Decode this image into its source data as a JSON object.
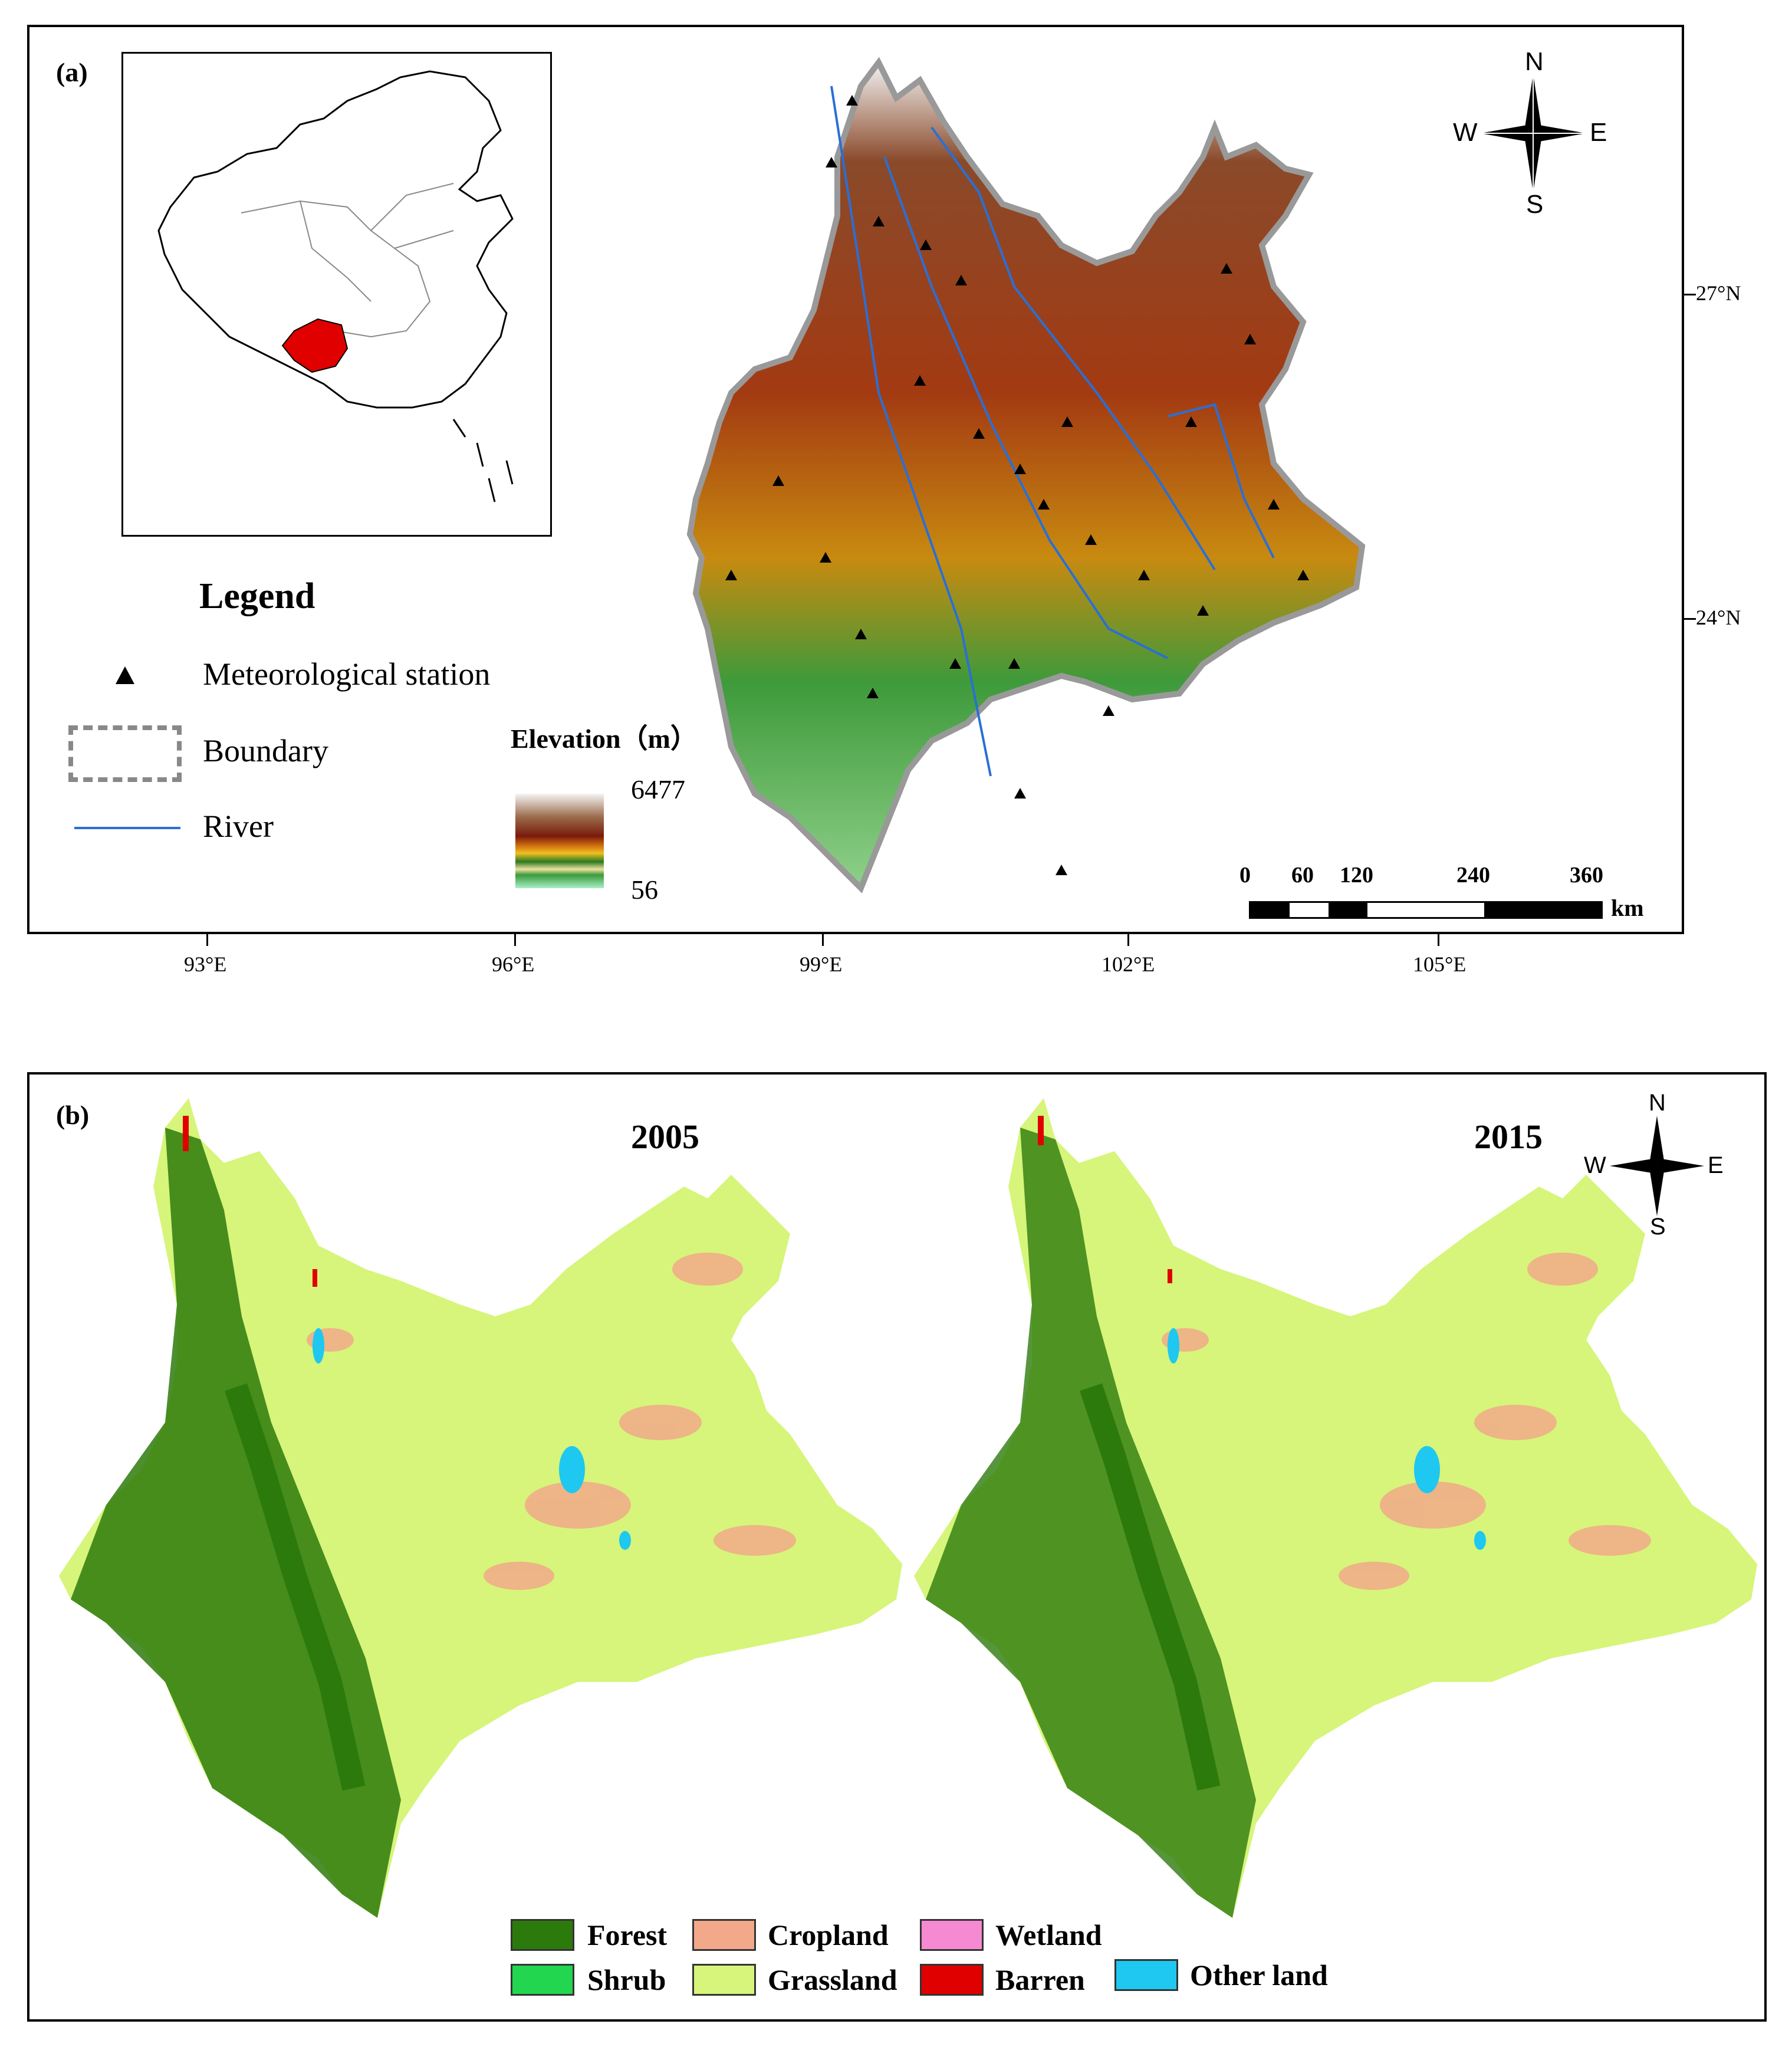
{
  "panel_a": {
    "label": "(a)",
    "legend": {
      "title": "Legend",
      "station": "Meteorological station",
      "boundary": "Boundary",
      "river": "River",
      "elevation_title": "Elevation（m）",
      "elevation_max": "6477",
      "elevation_min": "56"
    },
    "compass": {
      "n": "N",
      "s": "S",
      "w": "W",
      "e": "E"
    },
    "lat_ticks": [
      "27°N",
      "24°N"
    ],
    "lon_ticks": [
      "93°E",
      "96°E",
      "99°E",
      "102°E",
      "105°E"
    ],
    "scale": {
      "ticks": [
        "0",
        "60",
        "120",
        "240",
        "360"
      ],
      "unit": "km"
    },
    "colors": {
      "inset_region": "#e00000",
      "river": "#2a6fd6",
      "boundary": "#999999"
    }
  },
  "panel_b": {
    "label": "(b)",
    "years": [
      "2005",
      "2015"
    ],
    "compass": {
      "n": "N",
      "s": "S",
      "w": "W",
      "e": "E"
    },
    "legend": [
      {
        "name": "Forest",
        "color": "#2d7a0c"
      },
      {
        "name": "Cropland",
        "color": "#f2a98a"
      },
      {
        "name": "Wetland",
        "color": "#f58ad2"
      },
      {
        "name": "Shrub",
        "color": "#22d650"
      },
      {
        "name": "Grassland",
        "color": "#d6f57a"
      },
      {
        "name": "Barren",
        "color": "#e00000"
      },
      {
        "name": "Other land",
        "color": "#1ec8f0"
      }
    ]
  }
}
